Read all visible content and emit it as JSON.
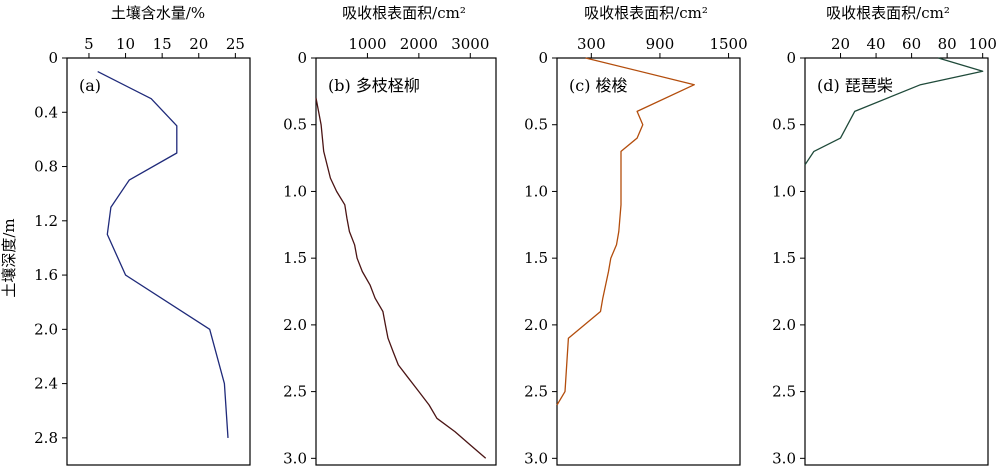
{
  "chart_data": [
    {
      "id": "a",
      "type": "line",
      "panel_label": "(a)",
      "xlabel": "土壤含水量/%",
      "ylabel": "土壤深度/m",
      "x_ticks": [
        5,
        10,
        15,
        20,
        25
      ],
      "y_ticks": [
        "0",
        "0.4",
        "0.8",
        "1.2",
        "1.6",
        "2.0",
        "2.4",
        "2.8"
      ],
      "xlim": [
        2,
        27
      ],
      "ylim": [
        0,
        3.0
      ],
      "color": "#1f2a7a",
      "points": [
        [
          6.2,
          0.1
        ],
        [
          13.5,
          0.3
        ],
        [
          17.0,
          0.5
        ],
        [
          17.0,
          0.7
        ],
        [
          10.5,
          0.9
        ],
        [
          8.0,
          1.1
        ],
        [
          7.5,
          1.3
        ],
        [
          10.0,
          1.6
        ],
        [
          21.5,
          2.0
        ],
        [
          23.5,
          2.4
        ],
        [
          24.0,
          2.8
        ]
      ]
    },
    {
      "id": "b",
      "type": "line",
      "panel_label": "(b) 多枝柽柳",
      "xlabel": "吸收根表面积/cm²",
      "x_ticks": [
        "1000",
        "2000",
        "3000"
      ],
      "y_ticks": [
        "0",
        "0.5",
        "1.0",
        "1.5",
        "2.0",
        "2.5",
        "3.0"
      ],
      "xlim": [
        0,
        3500
      ],
      "ylim": [
        0,
        3.05
      ],
      "color": "#4a1414",
      "points": [
        [
          0,
          0.3
        ],
        [
          100,
          0.5
        ],
        [
          150,
          0.7
        ],
        [
          280,
          0.9
        ],
        [
          400,
          1.0
        ],
        [
          560,
          1.1
        ],
        [
          600,
          1.2
        ],
        [
          650,
          1.3
        ],
        [
          750,
          1.4
        ],
        [
          800,
          1.5
        ],
        [
          900,
          1.6
        ],
        [
          1050,
          1.7
        ],
        [
          1150,
          1.8
        ],
        [
          1300,
          1.9
        ],
        [
          1350,
          2.0
        ],
        [
          1400,
          2.1
        ],
        [
          1500,
          2.2
        ],
        [
          1600,
          2.3
        ],
        [
          1800,
          2.4
        ],
        [
          2000,
          2.5
        ],
        [
          2200,
          2.6
        ],
        [
          2350,
          2.7
        ],
        [
          2700,
          2.8
        ],
        [
          3000,
          2.9
        ],
        [
          3300,
          3.0
        ]
      ]
    },
    {
      "id": "c",
      "type": "line",
      "panel_label": "(c) 梭梭",
      "xlabel": "吸收根表面积/cm²",
      "x_ticks": [
        "300",
        "900",
        "1500"
      ],
      "y_ticks": [
        "0",
        "0.5",
        "1.0",
        "1.5",
        "2.0",
        "2.5",
        "3.0"
      ],
      "xlim": [
        0,
        1600
      ],
      "ylim": [
        0,
        3.05
      ],
      "color": "#b34d0c",
      "points": [
        [
          250,
          0
        ],
        [
          1200,
          0.2
        ],
        [
          700,
          0.4
        ],
        [
          750,
          0.5
        ],
        [
          700,
          0.6
        ],
        [
          560,
          0.7
        ],
        [
          560,
          0.9
        ],
        [
          560,
          1.1
        ],
        [
          540,
          1.3
        ],
        [
          520,
          1.4
        ],
        [
          470,
          1.5
        ],
        [
          450,
          1.6
        ],
        [
          400,
          1.8
        ],
        [
          380,
          1.9
        ],
        [
          100,
          2.1
        ],
        [
          70,
          2.5
        ],
        [
          0,
          2.6
        ]
      ]
    },
    {
      "id": "d",
      "type": "line",
      "panel_label": "(d) 琵琶柴",
      "xlabel": "吸收根表面积/cm²",
      "x_ticks": [
        "20",
        "40",
        "60",
        "80",
        "100"
      ],
      "y_ticks": [
        "0",
        "0.5",
        "1.0",
        "1.5",
        "2.0",
        "2.5",
        "3.0"
      ],
      "xlim": [
        0,
        103
      ],
      "ylim": [
        0,
        3.05
      ],
      "color": "#1f4a3a",
      "points": [
        [
          75,
          0
        ],
        [
          100,
          0.1
        ],
        [
          65,
          0.2
        ],
        [
          28,
          0.4
        ],
        [
          20,
          0.6
        ],
        [
          5,
          0.7
        ],
        [
          0,
          0.8
        ]
      ]
    }
  ]
}
